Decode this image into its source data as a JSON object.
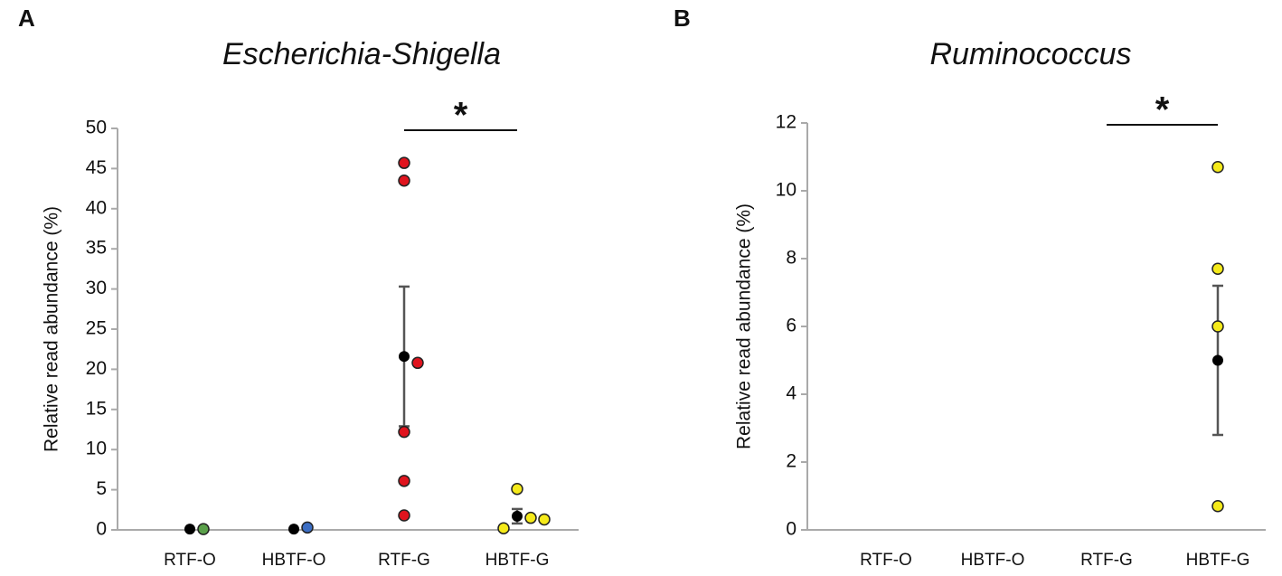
{
  "chart_data": [
    {
      "type": "dot",
      "panel_label": "A",
      "title": "Escherichia-Shigella",
      "y_label": "Relative read abundance (%)",
      "categories": [
        "RTF-O",
        "HBTF-O",
        "RTF-G",
        "HBTF-G"
      ],
      "point_colors": [
        "#5aa04a",
        "#3c6ec4",
        "#e0141e",
        "#f5ea1a"
      ],
      "points": [
        [
          0.1
        ],
        [
          0.3
        ],
        [
          45.7,
          43.5,
          20.8,
          12.2,
          6.1,
          1.8
        ],
        [
          5.1,
          1.5,
          0.2,
          1.3
        ]
      ],
      "means": [
        0.1,
        0.1,
        21.6,
        1.7
      ],
      "errors": [
        0,
        0,
        8.7,
        0.9
      ],
      "mean_color": "#000000",
      "ylim": [
        0,
        50
      ],
      "yticks": [
        0,
        5,
        10,
        15,
        20,
        25,
        30,
        35,
        40,
        45,
        50
      ],
      "annotations": [
        {
          "text": "*",
          "from": 2,
          "to": 3
        }
      ]
    },
    {
      "type": "dot",
      "panel_label": "B",
      "title": "Ruminococcus",
      "y_label": "Relative read abundance (%)",
      "categories": [
        "RTF-O",
        "HBTF-O",
        "RTF-G",
        "HBTF-G"
      ],
      "point_colors": [
        "#5aa04a",
        "#3c6ec4",
        "#e0141e",
        "#f5ea1a"
      ],
      "points": [
        [],
        [],
        [],
        [
          10.7,
          7.7,
          6.0,
          0.7
        ]
      ],
      "means": [
        null,
        null,
        null,
        5.0
      ],
      "errors": [
        null,
        null,
        null,
        2.2
      ],
      "mean_color": "#000000",
      "ylim": [
        0,
        12
      ],
      "yticks": [
        0,
        2,
        4,
        6,
        8,
        10,
        12
      ],
      "annotations": [
        {
          "text": "*",
          "from": 2,
          "to": 3
        }
      ]
    }
  ]
}
